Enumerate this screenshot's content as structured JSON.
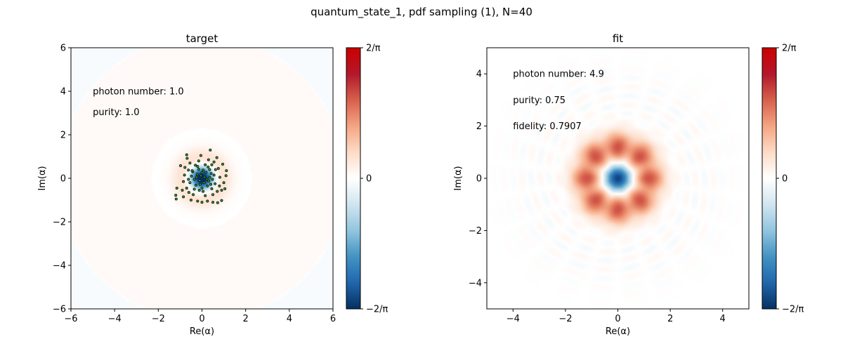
{
  "suptitle": "quantum_state_1, pdf sampling (1), N=40",
  "chart_data": [
    {
      "type": "heatmap",
      "title": "target",
      "xlabel": "Re(α)",
      "ylabel": "Im(α)",
      "xlim": [
        -6,
        6
      ],
      "ylim": [
        -6,
        6
      ],
      "xticks": [
        -6,
        -4,
        -2,
        0,
        2,
        4,
        6
      ],
      "yticks": [
        -6,
        -4,
        -2,
        0,
        2,
        4,
        6
      ],
      "xtick_labels": [
        "−6",
        "−4",
        "−2",
        "0",
        "2",
        "4",
        "6"
      ],
      "ytick_labels": [
        "−6",
        "−4",
        "−2",
        "0",
        "2",
        "4",
        "6"
      ],
      "grid": false,
      "annotations": [
        {
          "text": "photon number: 1.0",
          "x": -5.0,
          "y": 4.0
        },
        {
          "text": "purity: 1.0",
          "x": -5.0,
          "y": 3.05
        }
      ],
      "colorbar": {
        "range": [
          -0.6366,
          0.6366
        ],
        "tick_values": [
          0.6366,
          0,
          -0.6366
        ],
        "tick_labels": [
          "2/π",
          "0",
          "−2/π"
        ],
        "cmap": [
          "#053061",
          "#2166ac",
          "#4393c3",
          "#92c5de",
          "#d1e5f0",
          "#ffffff",
          "#fddbc7",
          "#f4a582",
          "#d6604d",
          "#b2182b",
          "#cc0000"
        ]
      },
      "samples": [
        [
          0.12,
          0.05
        ],
        [
          -0.22,
          0.18
        ],
        [
          0.31,
          -0.12
        ],
        [
          -0.08,
          -0.28
        ],
        [
          0.42,
          0.22
        ],
        [
          -0.35,
          -0.05
        ],
        [
          0.05,
          0.38
        ],
        [
          -0.15,
          0.42
        ],
        [
          0.25,
          -0.35
        ],
        [
          -0.42,
          0.3
        ],
        [
          0.48,
          -0.05
        ],
        [
          0.0,
          -0.45
        ],
        [
          0.18,
          0.28
        ],
        [
          -0.28,
          -0.32
        ],
        [
          0.35,
          0.4
        ],
        [
          -0.05,
          0.12
        ],
        [
          0.1,
          -0.2
        ],
        [
          -0.48,
          0.1
        ],
        [
          0.55,
          0.15
        ],
        [
          -0.2,
          0.55
        ],
        [
          0.28,
          0.52
        ],
        [
          -0.55,
          -0.2
        ],
        [
          0.6,
          -0.25
        ],
        [
          -0.35,
          -0.5
        ],
        [
          0.05,
          -0.6
        ],
        [
          0.15,
          0.62
        ],
        [
          -0.62,
          0.38
        ],
        [
          0.45,
          -0.48
        ],
        [
          -0.25,
          0.05
        ],
        [
          0.22,
          -0.05
        ],
        [
          -0.78,
          0.5
        ],
        [
          -0.8,
          0.15
        ],
        [
          -0.85,
          -0.15
        ],
        [
          -0.7,
          -0.45
        ],
        [
          0.75,
          0.45
        ],
        [
          0.82,
          0.05
        ],
        [
          0.8,
          -0.35
        ],
        [
          0.7,
          -0.6
        ],
        [
          -0.55,
          0.7
        ],
        [
          0.55,
          0.75
        ],
        [
          -0.15,
          0.8
        ],
        [
          0.3,
          0.85
        ],
        [
          -0.4,
          -0.75
        ],
        [
          0.15,
          -0.8
        ],
        [
          -0.6,
          -0.65
        ],
        [
          0.5,
          -0.75
        ],
        [
          -0.9,
          -0.55
        ],
        [
          0.9,
          -0.55
        ],
        [
          -0.68,
          0.92
        ],
        [
          0.68,
          0.95
        ],
        [
          -0.7,
          1.08
        ],
        [
          0.38,
          1.3
        ],
        [
          -0.05,
          1.05
        ],
        [
          -0.98,
          0.58
        ],
        [
          0.95,
          0.65
        ],
        [
          1.12,
          0.35
        ],
        [
          1.1,
          0.12
        ],
        [
          1.0,
          -0.2
        ],
        [
          1.05,
          -0.48
        ],
        [
          -1.15,
          -0.45
        ],
        [
          -1.18,
          -0.95
        ],
        [
          -1.2,
          -0.78
        ],
        [
          -0.85,
          -0.85
        ],
        [
          -0.5,
          -1.0
        ],
        [
          -0.2,
          -1.05
        ],
        [
          0.0,
          -1.1
        ],
        [
          0.25,
          -1.05
        ],
        [
          0.5,
          -1.1
        ],
        [
          0.72,
          -1.12
        ],
        [
          0.9,
          -1.02
        ],
        [
          -0.45,
          0.35
        ],
        [
          0.4,
          -0.28
        ],
        [
          -0.1,
          -0.1
        ],
        [
          0.0,
          0.25
        ],
        [
          -0.3,
          0.6
        ],
        [
          0.62,
          0.4
        ],
        [
          -0.62,
          -0.05
        ],
        [
          0.35,
          0.05
        ],
        [
          -0.12,
          -0.55
        ],
        [
          0.45,
          0.62
        ]
      ]
    },
    {
      "type": "heatmap",
      "title": "fit",
      "xlabel": "Re(α)",
      "ylabel": "Im(α)",
      "xlim": [
        -5,
        5
      ],
      "ylim": [
        -5,
        5
      ],
      "xticks": [
        -4,
        -2,
        0,
        2,
        4
      ],
      "yticks": [
        -4,
        -2,
        0,
        2,
        4
      ],
      "xtick_labels": [
        "−4",
        "−2",
        "0",
        "2",
        "4"
      ],
      "ytick_labels": [
        "−4",
        "−2",
        "0",
        "2",
        "4"
      ],
      "grid": false,
      "annotations": [
        {
          "text": "photon number: 4.9",
          "x": -4.0,
          "y": 4.0
        },
        {
          "text": "purity: 0.75",
          "x": -4.0,
          "y": 3.0
        },
        {
          "text": "fidelity: 0.7907",
          "x": -4.0,
          "y": 2.0
        }
      ],
      "colorbar": {
        "range": [
          -0.6366,
          0.6366
        ],
        "tick_values": [
          0.6366,
          0,
          -0.6366
        ],
        "tick_labels": [
          "2/π",
          "0",
          "−2/π"
        ],
        "cmap": [
          "#053061",
          "#2166ac",
          "#4393c3",
          "#92c5de",
          "#d1e5f0",
          "#ffffff",
          "#fddbc7",
          "#f4a582",
          "#d6604d",
          "#b2182b",
          "#cc0000"
        ]
      }
    }
  ]
}
